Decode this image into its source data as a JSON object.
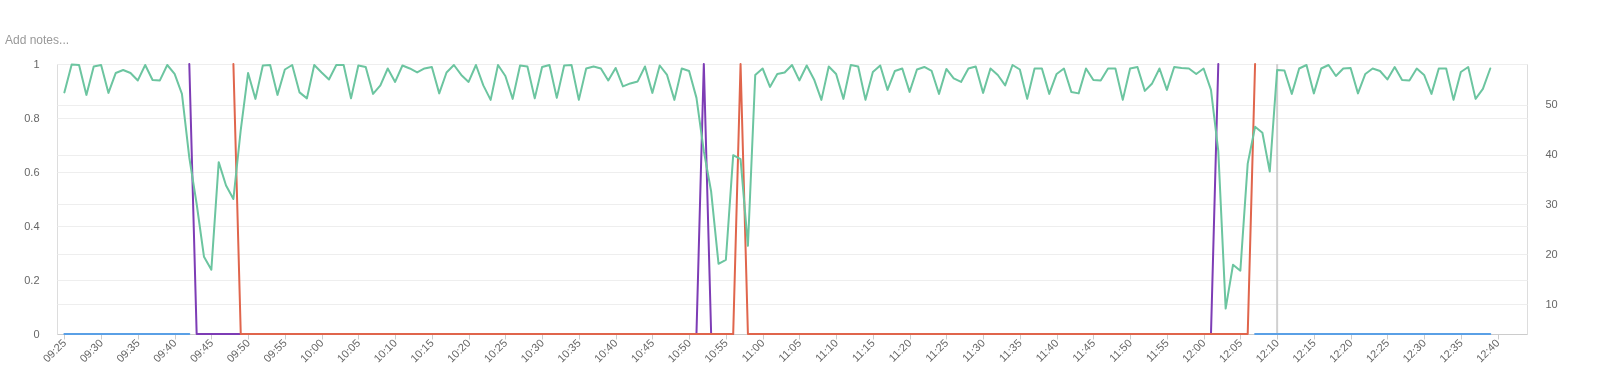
{
  "chart_data": {
    "type": "line",
    "annotations": [
      "Add notes..."
    ],
    "x": [
      9.4167,
      9.4333,
      9.45,
      9.4667,
      9.4833,
      9.5,
      9.5167,
      9.5333,
      9.55,
      9.5667,
      9.5833,
      9.6,
      9.6167,
      9.6333,
      9.65,
      9.6667,
      9.6833,
      9.7,
      9.7167,
      9.7333,
      9.75,
      9.7667,
      9.7833,
      9.8,
      9.8167,
      9.8333,
      9.85,
      9.8667,
      9.8833,
      9.9,
      9.9167,
      9.9333,
      9.95,
      9.9667,
      9.9833,
      10,
      10.0167,
      10.0333,
      10.05,
      10.0667,
      10.0833,
      10.1,
      10.1167,
      10.1333,
      10.15,
      10.1667,
      10.1833,
      10.2,
      10.2167,
      10.2333,
      10.25,
      10.2667,
      10.2833,
      10.3,
      10.3167,
      10.3333,
      10.35,
      10.3667,
      10.3833,
      10.4,
      10.4167,
      10.4333,
      10.45,
      10.4667,
      10.4833,
      10.5,
      10.5167,
      10.5333,
      10.55,
      10.5667,
      10.5833,
      10.6,
      10.6167,
      10.6333,
      10.65,
      10.6667,
      10.6833,
      10.7,
      10.7167,
      10.7333,
      10.75,
      10.7667,
      10.7833,
      10.8,
      10.8167,
      10.8333,
      10.85,
      10.8667,
      10.8833,
      10.9,
      10.9167,
      10.9333,
      10.95,
      10.9667,
      10.9833,
      11,
      11.0167,
      11.0333,
      11.05,
      11.0667,
      11.0833,
      11.1,
      11.1167,
      11.1333,
      11.15,
      11.1667,
      11.1833,
      11.2,
      11.2167,
      11.2333,
      11.25,
      11.2667,
      11.2833,
      11.3,
      11.3167,
      11.3333,
      11.35,
      11.3667,
      11.3833,
      11.4,
      11.4167,
      11.4333,
      11.45,
      11.4667,
      11.4833,
      11.5,
      11.5167,
      11.5333,
      11.55,
      11.5667,
      11.5833,
      11.6,
      11.6167,
      11.6333,
      11.65,
      11.6667,
      11.6833,
      11.7,
      11.7167,
      11.7333,
      11.75,
      11.7667,
      11.7833,
      11.8,
      11.8167,
      11.8333,
      11.85,
      11.8667,
      11.8833,
      11.9,
      11.9167,
      11.9333,
      11.95,
      11.9667,
      11.9833,
      12,
      12.0167,
      12.0333,
      12.05,
      12.0667,
      12.0833,
      12.1,
      12.1167,
      12.1333,
      12.15,
      12.1667,
      12.1833,
      12.2,
      12.2167,
      12.2333,
      12.25,
      12.2667,
      12.2833,
      12.3,
      12.3167,
      12.3333,
      12.35,
      12.3667,
      12.3833,
      12.4,
      12.4167,
      12.4333,
      12.45,
      12.4667,
      12.4833,
      12.5,
      12.5167,
      12.5333,
      12.55,
      12.5667,
      12.5833,
      12.6,
      12.6167,
      12.6333,
      12.65
    ],
    "series": [
      {
        "color": "#5aa0e6",
        "x": [
          9.4167,
          9.7,
          9.7167,
          12.1167,
          12.65
        ],
        "values": [
          0,
          0,
          null,
          0,
          0
        ]
      },
      {
        "color": "#7d3cb5",
        "x": [
          9.7,
          9.7167,
          9.8167,
          9.8333,
          10.85,
          10.8667,
          10.8833,
          10.9333,
          10.95,
          12.0167,
          12.0333
        ],
        "values": [
          1,
          0,
          0,
          null,
          0,
          1,
          0,
          0,
          null,
          0,
          1
        ]
      },
      {
        "color": "#e0654c",
        "x": [
          9.8,
          9.8167,
          10.9333,
          10.95,
          10.9667,
          12.1,
          12.1167
        ],
        "values": [
          1,
          0,
          0,
          1,
          0,
          0,
          1
        ]
      },
      {
        "color": "#6cc5a0",
        "axis": "y2",
        "values": [
          52.5,
          58.1,
          58,
          52,
          57.7,
          58,
          52.4,
          56.4,
          57,
          56.4,
          54.9,
          58,
          55,
          54.9,
          58,
          56.2,
          52.2,
          39.4,
          30.1,
          19.5,
          16.9,
          38.5,
          33.8,
          31.1,
          45,
          56.4,
          51.2,
          57.9,
          58,
          52,
          57.1,
          58,
          52.5,
          51.3,
          58,
          56.5,
          55.1,
          58,
          58,
          51.3,
          57.9,
          57.6,
          52.2,
          53.9,
          57.3,
          54.6,
          57.9,
          57.3,
          56.5,
          57.3,
          57.6,
          52.3,
          56.5,
          58,
          56,
          54.6,
          58,
          53.9,
          51,
          58,
          55.8,
          51.2,
          57.9,
          57.7,
          51.3,
          57.6,
          58,
          51.4,
          57.9,
          58,
          51,
          57.3,
          57.7,
          57.3,
          54.9,
          57.4,
          53.7,
          54.3,
          54.7,
          57.7,
          52.4,
          57.9,
          56,
          51,
          57.3,
          56.8,
          51.4,
          40.7,
          32.6,
          18.1,
          18.9,
          39.9,
          39.1,
          21.7,
          56,
          57.3,
          53.6,
          56.2,
          56.5,
          58,
          54.9,
          57.9,
          55.1,
          51,
          57.7,
          56.2,
          51.2,
          58,
          57.7,
          51,
          56.6,
          57.9,
          53,
          56.8,
          57.3,
          52.6,
          57.1,
          57.6,
          56.8,
          52.2,
          57.2,
          55.3,
          54.6,
          57.3,
          57.7,
          52.4,
          57.3,
          56,
          53.9,
          58,
          57.1,
          51.2,
          57.3,
          57.3,
          52.2,
          56.2,
          57.3,
          52.6,
          52.3,
          57.3,
          55,
          54.9,
          57.3,
          57.3,
          51,
          57.3,
          57.6,
          52.8,
          54.3,
          57.3,
          53,
          57.6,
          57.4,
          57.3,
          56.2,
          57.3,
          53,
          40.7,
          9.1,
          17.9,
          16.7,
          38.2,
          45.6,
          44.4,
          36.6,
          57,
          56.9,
          52.2,
          57.3,
          58,
          52.3,
          57.3,
          58,
          55.8,
          57.3,
          57.4,
          52.3,
          56.2,
          57.3,
          56.8,
          55.1,
          57.6,
          55,
          54.9,
          57.3,
          56,
          52.2,
          57.3,
          57.3,
          51,
          56.6,
          57.6,
          51.2,
          53.2,
          57.3
        ]
      }
    ],
    "xlim": [
      9.4,
      12.7333
    ],
    "xticks": [
      {
        "value": 9.4167,
        "label": "09:25"
      },
      {
        "value": 9.5,
        "label": "09:30"
      },
      {
        "value": 9.5833,
        "label": "09:35"
      },
      {
        "value": 9.6667,
        "label": "09:40"
      },
      {
        "value": 9.75,
        "label": "09:45"
      },
      {
        "value": 9.8333,
        "label": "09:50"
      },
      {
        "value": 9.9167,
        "label": "09:55"
      },
      {
        "value": 10,
        "label": "10:00"
      },
      {
        "value": 10.0833,
        "label": "10:05"
      },
      {
        "value": 10.1667,
        "label": "10:10"
      },
      {
        "value": 10.25,
        "label": "10:15"
      },
      {
        "value": 10.3333,
        "label": "10:20"
      },
      {
        "value": 10.4167,
        "label": "10:25"
      },
      {
        "value": 10.5,
        "label": "10:30"
      },
      {
        "value": 10.5833,
        "label": "10:35"
      },
      {
        "value": 10.6667,
        "label": "10:40"
      },
      {
        "value": 10.75,
        "label": "10:45"
      },
      {
        "value": 10.8333,
        "label": "10:50"
      },
      {
        "value": 10.9167,
        "label": "10:55"
      },
      {
        "value": 11,
        "label": "11:00"
      },
      {
        "value": 11.0833,
        "label": "11:05"
      },
      {
        "value": 11.1667,
        "label": "11:10"
      },
      {
        "value": 11.25,
        "label": "11:15"
      },
      {
        "value": 11.3333,
        "label": "11:20"
      },
      {
        "value": 11.4167,
        "label": "11:25"
      },
      {
        "value": 11.5,
        "label": "11:30"
      },
      {
        "value": 11.5833,
        "label": "11:35"
      },
      {
        "value": 11.6667,
        "label": "11:40"
      },
      {
        "value": 11.75,
        "label": "11:45"
      },
      {
        "value": 11.8333,
        "label": "11:50"
      },
      {
        "value": 11.9167,
        "label": "11:55"
      },
      {
        "value": 12,
        "label": "12:00"
      },
      {
        "value": 12.0833,
        "label": "12:05"
      },
      {
        "value": 12.1667,
        "label": "12:10"
      },
      {
        "value": 12.25,
        "label": "12:15"
      },
      {
        "value": 12.3333,
        "label": "12:20"
      },
      {
        "value": 12.4167,
        "label": "12:25"
      },
      {
        "value": 12.5,
        "label": "12:30"
      },
      {
        "value": 12.5833,
        "label": "12:35"
      },
      {
        "value": 12.6667,
        "label": "12:40"
      }
    ],
    "ylim": [
      0,
      1
    ],
    "yticks": [
      0,
      0.2,
      0.4,
      0.6,
      0.8,
      1
    ],
    "y2lim": [
      4,
      58.2
    ],
    "y2ticks": [
      10,
      20,
      30,
      40,
      50
    ],
    "ref_lines": [
      {
        "axis": "x",
        "value": 12.1667,
        "color": "#d0d0d0"
      }
    ],
    "grid": "y",
    "legend": false
  }
}
